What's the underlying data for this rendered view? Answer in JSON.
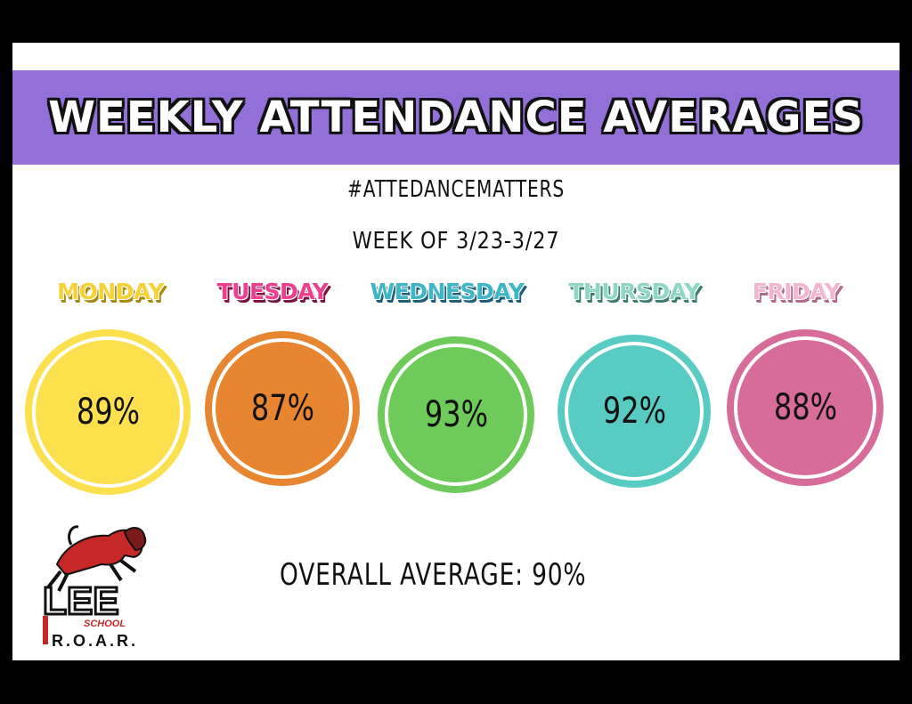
{
  "banner": {
    "title": "WEEKLY ATTENDANCE AVERAGES"
  },
  "hashtag": "#ATTEDANCEMATTERS",
  "week": "WEEK OF 3/23-3/27",
  "days": [
    {
      "label": "MONDAY",
      "value": "89%",
      "color": "#fde04e",
      "label_color": "#f5d23a",
      "label_shadow": "#a88a12"
    },
    {
      "label": "TUESDAY",
      "value": "87%",
      "color": "#e88530",
      "label_color": "#ec3f8d",
      "label_shadow": "#7a1440"
    },
    {
      "label": "WEDNESDAY",
      "value": "93%",
      "color": "#6ecb5a",
      "label_color": "#3fb6c6",
      "label_shadow": "#1b5f7a"
    },
    {
      "label": "THURSDAY",
      "value": "92%",
      "color": "#58ccc3",
      "label_color": "#8fd6c3",
      "label_shadow": "#3c7d70"
    },
    {
      "label": "FRIDAY",
      "value": "88%",
      "color": "#d76c9b",
      "label_color": "#f3b6d0",
      "label_shadow": "#b06a8a"
    }
  ],
  "overall": "OVERALL AVERAGE: 90%",
  "logo": {
    "text_main": "LEE",
    "text_school": "SCHOOL",
    "text_roar": "R.O.A.R.",
    "icon": "lion-mascot-icon"
  }
}
